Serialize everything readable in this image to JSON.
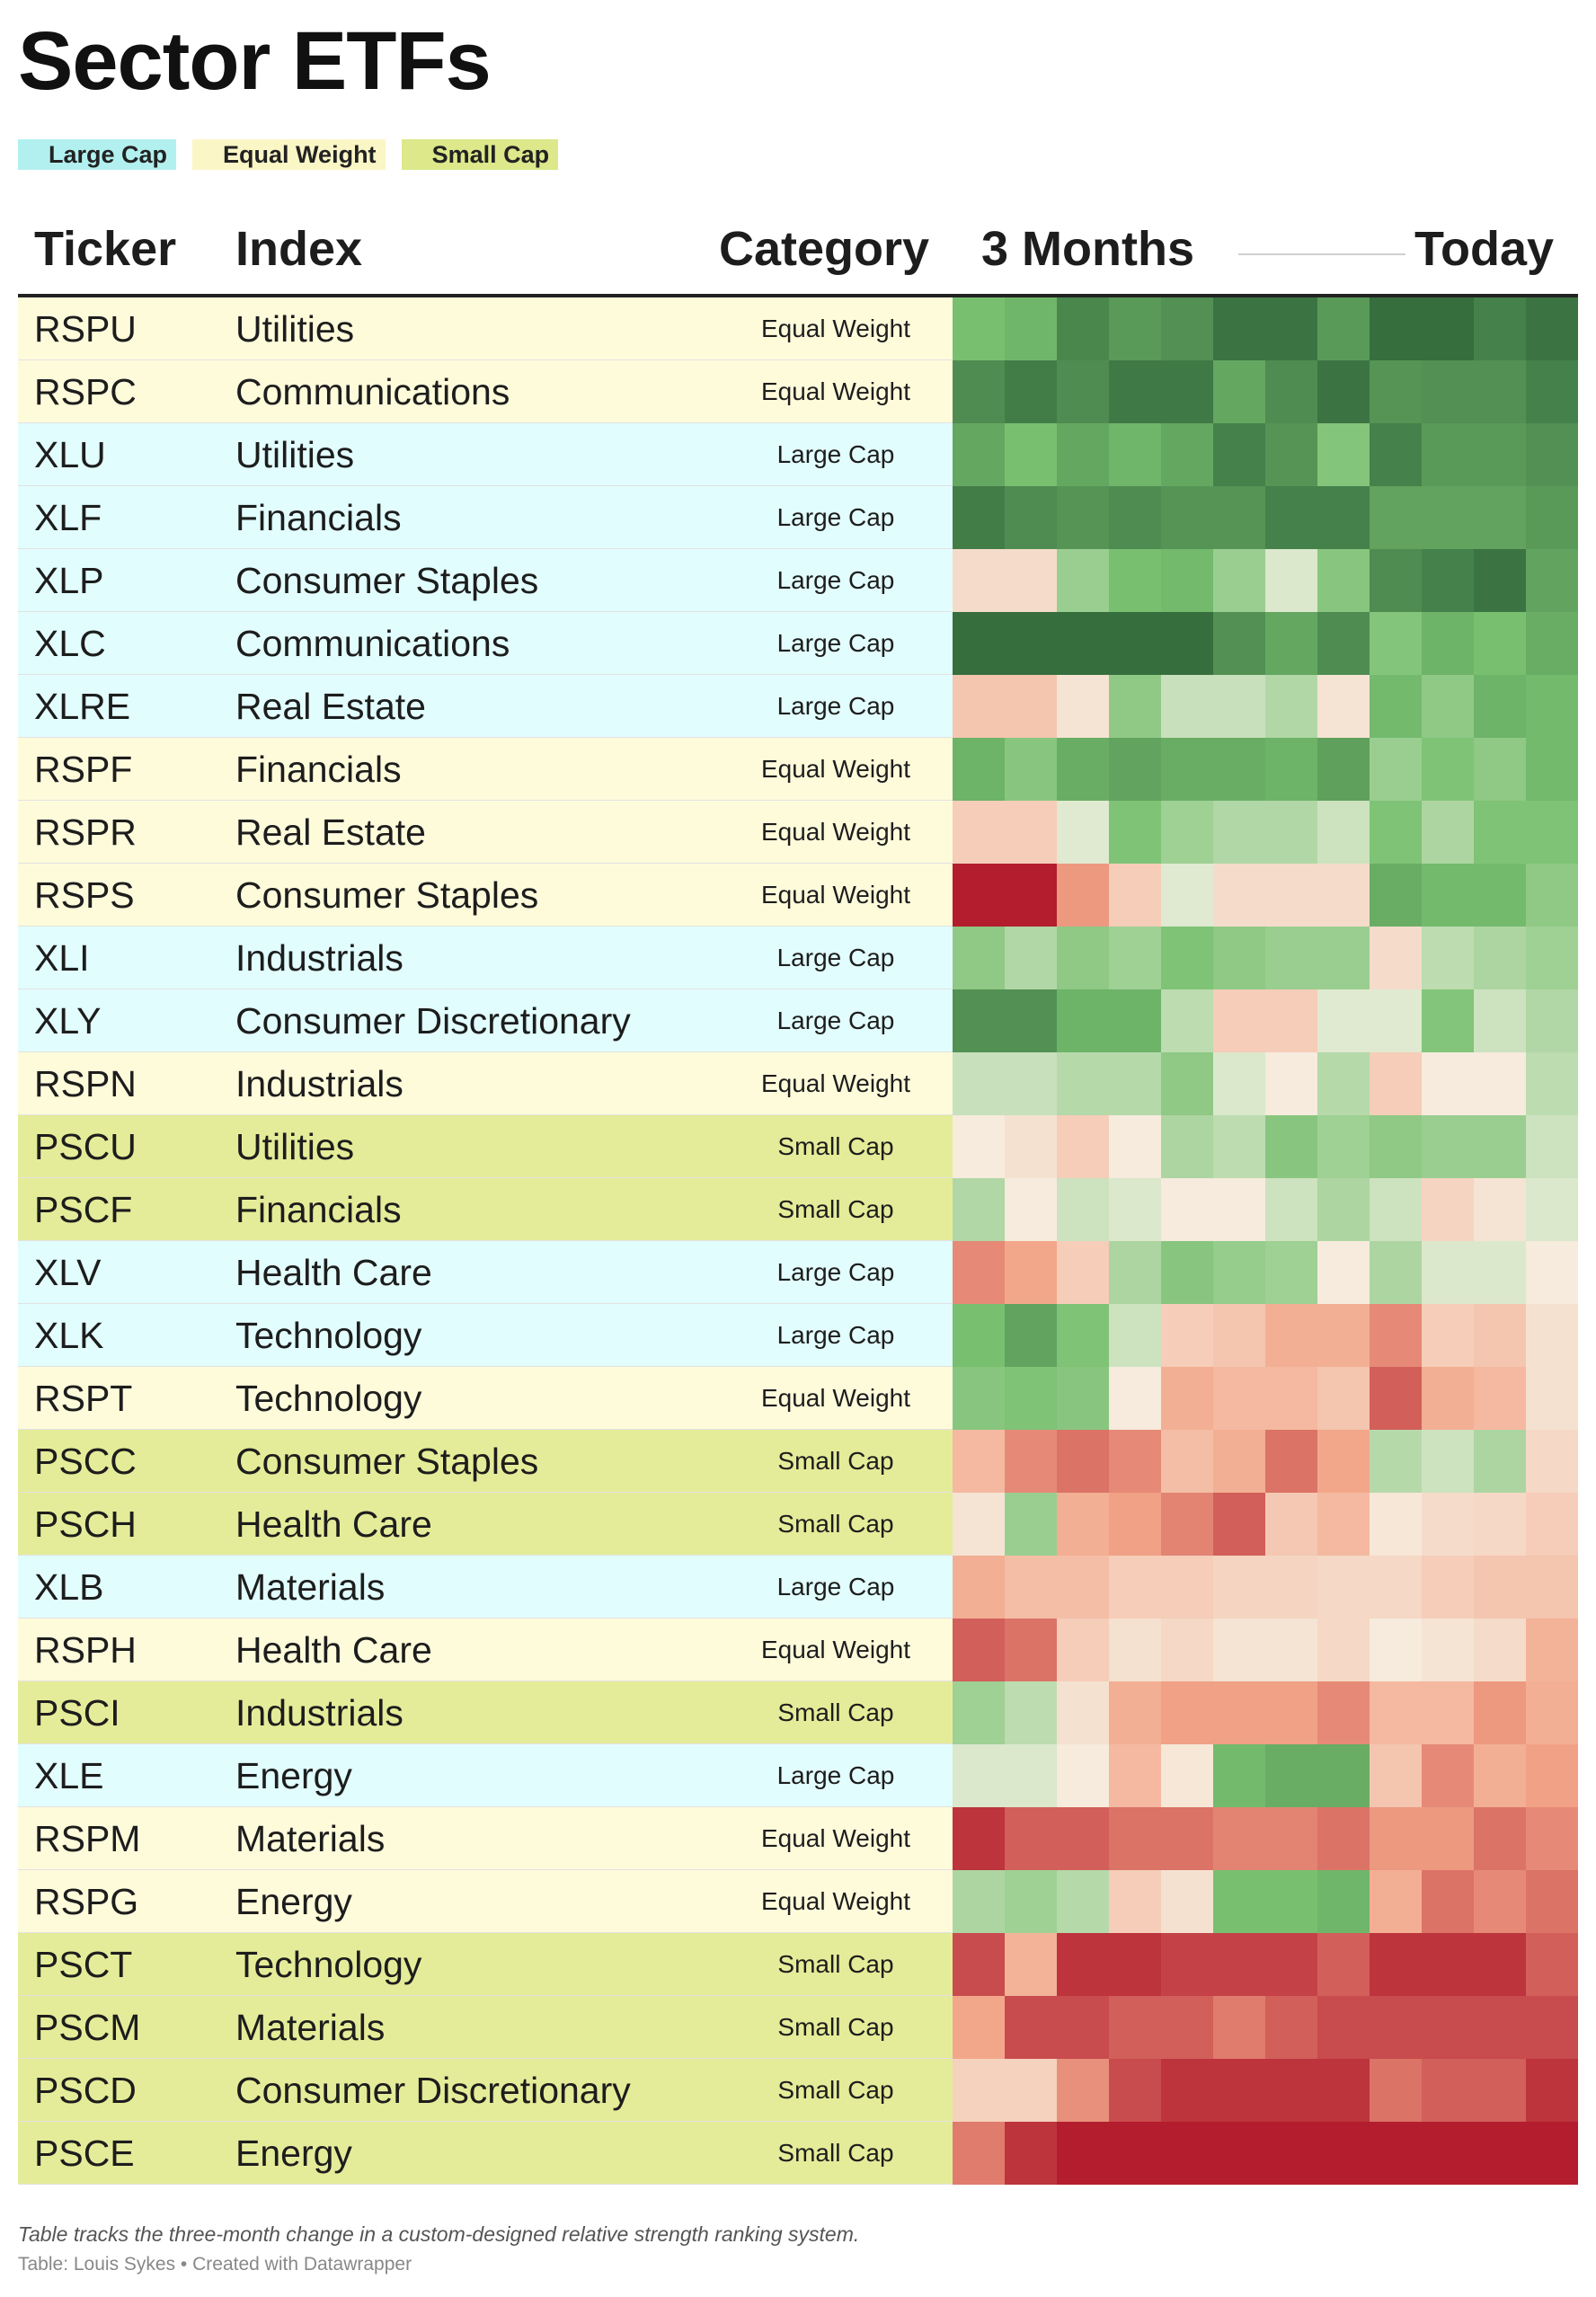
{
  "title": "Sector ETFs",
  "legend": [
    {
      "label": "Large Cap",
      "color": "#b2f0ef"
    },
    {
      "label": "Equal Weight",
      "color": "#fbf6c6"
    },
    {
      "label": "Small Cap",
      "color": "#dce88a"
    }
  ],
  "headers": {
    "ticker": "Ticker",
    "index": "Index",
    "category": "Category",
    "start": "3 Months",
    "end": "Today"
  },
  "category_colors": {
    "Large Cap": "#e2fdfd",
    "Equal Weight": "#fefbdb",
    "Small Cap": "#e5ec99"
  },
  "chart_data": {
    "type": "heatmap",
    "title": "Sector ETFs",
    "color_scale": {
      "strong_red": "#b0172a",
      "neutral": "#f6f3e6",
      "strong_green": "#336a3c"
    },
    "rows": [
      {
        "ticker": "RSPU",
        "index": "Utilities",
        "category": "Equal Weight",
        "values": [
          0.55,
          0.6,
          0.85,
          0.75,
          0.8,
          0.95,
          0.95,
          0.75,
          0.98,
          0.98,
          0.88,
          0.95
        ]
      },
      {
        "ticker": "RSPC",
        "index": "Communications",
        "category": "Equal Weight",
        "values": [
          0.82,
          0.9,
          0.82,
          0.92,
          0.92,
          0.68,
          0.82,
          0.95,
          0.78,
          0.8,
          0.8,
          0.88
        ]
      },
      {
        "ticker": "XLU",
        "index": "Utilities",
        "category": "Large Cap",
        "values": [
          0.68,
          0.55,
          0.68,
          0.6,
          0.68,
          0.88,
          0.78,
          0.5,
          0.88,
          0.75,
          0.75,
          0.8
        ]
      },
      {
        "ticker": "XLF",
        "index": "Financials",
        "category": "Large Cap",
        "values": [
          0.9,
          0.82,
          0.78,
          0.82,
          0.78,
          0.78,
          0.88,
          0.88,
          0.7,
          0.7,
          0.7,
          0.75
        ]
      },
      {
        "ticker": "XLP",
        "index": "Consumer Staples",
        "category": "Large Cap",
        "values": [
          -0.15,
          -0.15,
          0.4,
          0.55,
          0.58,
          0.4,
          0.12,
          0.48,
          0.82,
          0.88,
          0.95,
          0.7
        ]
      },
      {
        "ticker": "XLC",
        "index": "Communications",
        "category": "Large Cap",
        "values": [
          0.98,
          0.98,
          0.98,
          0.98,
          0.98,
          0.8,
          0.68,
          0.82,
          0.5,
          0.62,
          0.55,
          0.65
        ]
      },
      {
        "ticker": "XLRE",
        "index": "Real Estate",
        "category": "Large Cap",
        "values": [
          -0.3,
          -0.3,
          -0.1,
          0.45,
          0.2,
          0.2,
          0.3,
          -0.1,
          0.58,
          0.45,
          0.62,
          0.58
        ]
      },
      {
        "ticker": "RSPF",
        "index": "Financials",
        "category": "Equal Weight",
        "values": [
          0.62,
          0.48,
          0.65,
          0.7,
          0.65,
          0.65,
          0.62,
          0.72,
          0.4,
          0.52,
          0.45,
          0.58
        ]
      },
      {
        "ticker": "RSPR",
        "index": "Real Estate",
        "category": "Equal Weight",
        "values": [
          -0.25,
          -0.25,
          0.1,
          0.52,
          0.38,
          0.3,
          0.3,
          0.18,
          0.52,
          0.32,
          0.52,
          0.52
        ]
      },
      {
        "ticker": "RSPS",
        "index": "Consumer Staples",
        "category": "Equal Weight",
        "values": [
          -0.98,
          -0.98,
          -0.55,
          -0.25,
          0.1,
          -0.15,
          -0.15,
          -0.15,
          0.65,
          0.58,
          0.58,
          0.45
        ]
      },
      {
        "ticker": "XLI",
        "index": "Industrials",
        "category": "Large Cap",
        "values": [
          0.45,
          0.3,
          0.45,
          0.38,
          0.52,
          0.45,
          0.4,
          0.4,
          -0.15,
          0.25,
          0.32,
          0.38
        ]
      },
      {
        "ticker": "XLY",
        "index": "Consumer Discretionary",
        "category": "Large Cap",
        "values": [
          0.8,
          0.8,
          0.62,
          0.62,
          0.25,
          -0.25,
          -0.25,
          0.1,
          0.1,
          0.5,
          0.18,
          0.3
        ]
      },
      {
        "ticker": "RSPN",
        "index": "Industrials",
        "category": "Equal Weight",
        "values": [
          0.2,
          0.2,
          0.28,
          0.28,
          0.45,
          0.12,
          -0.05,
          0.28,
          -0.25,
          -0.05,
          -0.05,
          0.25
        ]
      },
      {
        "ticker": "PSCU",
        "index": "Utilities",
        "category": "Small Cap",
        "values": [
          -0.05,
          -0.12,
          -0.25,
          -0.05,
          0.32,
          0.25,
          0.48,
          0.38,
          0.45,
          0.4,
          0.4,
          0.18
        ]
      },
      {
        "ticker": "PSCF",
        "index": "Financials",
        "category": "Small Cap",
        "values": [
          0.3,
          -0.05,
          0.18,
          0.12,
          -0.05,
          -0.05,
          0.18,
          0.32,
          0.18,
          -0.2,
          -0.1,
          0.12
        ]
      },
      {
        "ticker": "XLV",
        "index": "Health Care",
        "category": "Large Cap",
        "values": [
          -0.6,
          -0.5,
          -0.25,
          0.32,
          0.48,
          0.42,
          0.38,
          -0.05,
          0.32,
          0.12,
          0.12,
          -0.05
        ]
      },
      {
        "ticker": "XLK",
        "index": "Technology",
        "category": "Large Cap",
        "values": [
          0.55,
          0.7,
          0.52,
          0.18,
          -0.25,
          -0.3,
          -0.45,
          -0.45,
          -0.6,
          -0.25,
          -0.3,
          -0.12
        ]
      },
      {
        "ticker": "RSPT",
        "index": "Technology",
        "category": "Equal Weight",
        "values": [
          0.48,
          0.52,
          0.48,
          -0.05,
          -0.45,
          -0.38,
          -0.38,
          -0.3,
          -0.75,
          -0.45,
          -0.38,
          -0.12
        ]
      },
      {
        "ticker": "PSCC",
        "index": "Consumer Staples",
        "category": "Small Cap",
        "values": [
          -0.38,
          -0.6,
          -0.68,
          -0.6,
          -0.35,
          -0.45,
          -0.68,
          -0.5,
          0.28,
          0.18,
          0.32,
          -0.18
        ]
      },
      {
        "ticker": "PSCH",
        "index": "Health Care",
        "category": "Small Cap",
        "values": [
          -0.1,
          0.4,
          -0.45,
          -0.52,
          -0.62,
          -0.75,
          -0.28,
          -0.38,
          -0.08,
          -0.15,
          -0.18,
          -0.25
        ]
      },
      {
        "ticker": "XLB",
        "index": "Materials",
        "category": "Large Cap",
        "values": [
          -0.45,
          -0.35,
          -0.35,
          -0.25,
          -0.25,
          -0.2,
          -0.2,
          -0.18,
          -0.18,
          -0.25,
          -0.3,
          -0.3
        ]
      },
      {
        "ticker": "RSPH",
        "index": "Health Care",
        "category": "Equal Weight",
        "values": [
          -0.75,
          -0.68,
          -0.25,
          -0.12,
          -0.18,
          -0.1,
          -0.1,
          -0.18,
          -0.05,
          -0.1,
          -0.15,
          -0.42
        ]
      },
      {
        "ticker": "PSCI",
        "index": "Industrials",
        "category": "Small Cap",
        "values": [
          0.38,
          0.25,
          -0.12,
          -0.45,
          -0.52,
          -0.52,
          -0.52,
          -0.6,
          -0.38,
          -0.38,
          -0.55,
          -0.45
        ]
      },
      {
        "ticker": "XLE",
        "index": "Energy",
        "category": "Large Cap",
        "values": [
          0.12,
          0.12,
          -0.05,
          -0.38,
          -0.08,
          0.58,
          0.65,
          0.65,
          -0.3,
          -0.6,
          -0.45,
          -0.52
        ]
      },
      {
        "ticker": "RSPM",
        "index": "Materials",
        "category": "Equal Weight",
        "values": [
          -0.9,
          -0.75,
          -0.75,
          -0.68,
          -0.68,
          -0.62,
          -0.62,
          -0.68,
          -0.55,
          -0.55,
          -0.68,
          -0.6
        ]
      },
      {
        "ticker": "RSPG",
        "index": "Energy",
        "category": "Equal Weight",
        "values": [
          0.32,
          0.38,
          0.28,
          -0.25,
          -0.12,
          0.55,
          0.55,
          0.6,
          -0.45,
          -0.68,
          -0.6,
          -0.68
        ]
      },
      {
        "ticker": "PSCT",
        "index": "Technology",
        "category": "Small Cap",
        "values": [
          -0.82,
          -0.42,
          -0.9,
          -0.9,
          -0.85,
          -0.85,
          -0.85,
          -0.75,
          -0.9,
          -0.9,
          -0.9,
          -0.75
        ]
      },
      {
        "ticker": "PSCM",
        "index": "Materials",
        "category": "Small Cap",
        "values": [
          -0.5,
          -0.82,
          -0.82,
          -0.75,
          -0.75,
          -0.65,
          -0.75,
          -0.82,
          -0.82,
          -0.82,
          -0.82,
          -0.82
        ]
      },
      {
        "ticker": "PSCD",
        "index": "Consumer Discretionary",
        "category": "Small Cap",
        "values": [
          -0.22,
          -0.22,
          -0.58,
          -0.82,
          -0.9,
          -0.9,
          -0.9,
          -0.9,
          -0.68,
          -0.75,
          -0.75,
          -0.9
        ]
      },
      {
        "ticker": "PSCE",
        "index": "Energy",
        "category": "Small Cap",
        "values": [
          -0.65,
          -0.9,
          -0.98,
          -0.98,
          -0.98,
          -0.98,
          -0.98,
          -0.98,
          -0.98,
          -0.98,
          -0.98,
          -0.98
        ]
      }
    ]
  },
  "footer": {
    "note": "Table tracks the three-month change in a custom-designed relative strength ranking system.",
    "source": "Table: Louis Sykes • Created with Datawrapper"
  }
}
